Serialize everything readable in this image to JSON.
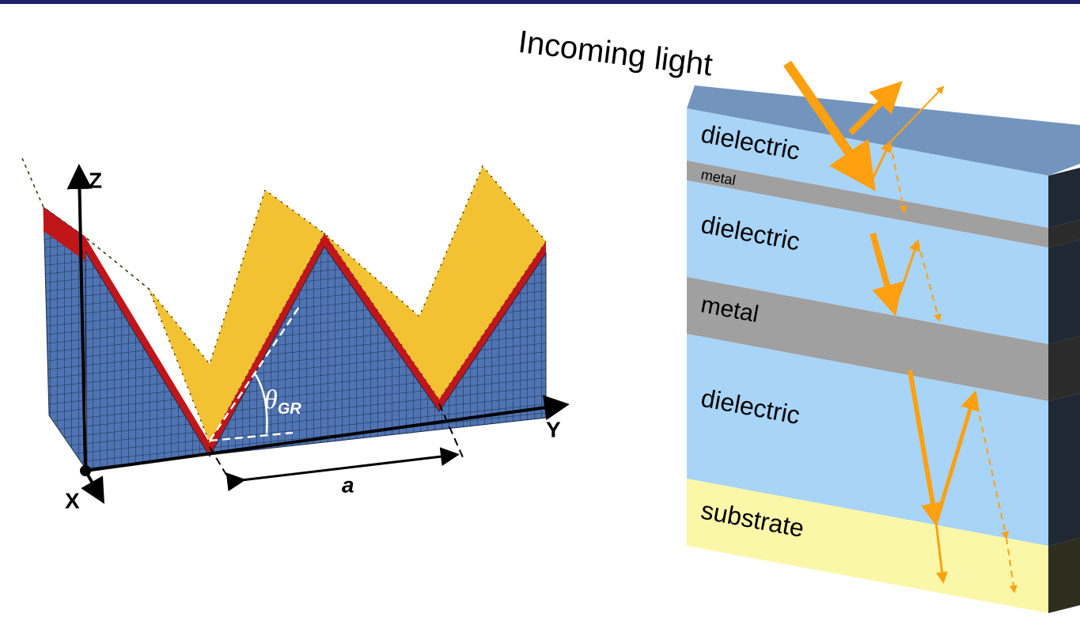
{
  "left_figure": {
    "axes": {
      "z": "Z",
      "y": "Y",
      "x": "X"
    },
    "period_label": "a",
    "angle_label": {
      "symbol": "θ",
      "subscript": "GR"
    }
  },
  "right_figure": {
    "incoming": "Incoming light",
    "layers": [
      "dielectric",
      "metal",
      "dielectric",
      "metal",
      "dielectric",
      "substrate"
    ]
  }
}
